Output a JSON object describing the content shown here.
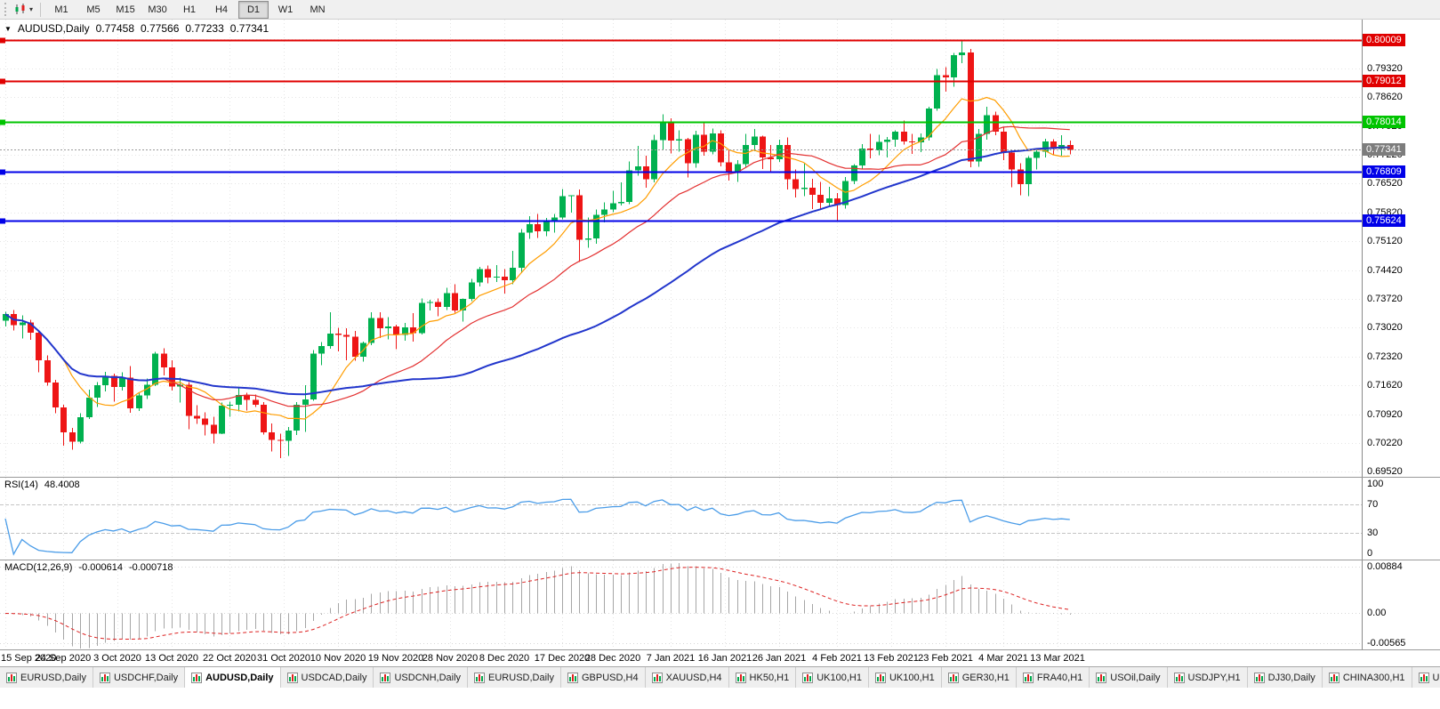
{
  "colors": {
    "bull": "#00b14f",
    "bear": "#ee1515",
    "grid": "#e5e5e5",
    "ma_fast": "#ff9d00",
    "ma_mid": "#e33030",
    "ma_slow": "#2236cc",
    "rsi_line": "#4a9ce8",
    "macd_hist": "#a6a6a6",
    "macd_signal": "#dd2222",
    "hline_red": "#e00000",
    "hline_green": "#00c400",
    "hline_blue": "#0000e8",
    "current_tag": "#7d7d7d"
  },
  "toolbar": {
    "timeframes": [
      "M1",
      "M5",
      "M15",
      "M30",
      "H1",
      "H4",
      "D1",
      "W1",
      "MN"
    ],
    "active": "D1",
    "dropdown_caret": "▾"
  },
  "header": {
    "collapse_icon": "▼",
    "symbol": "AUDUSD,Daily",
    "open": "0.77458",
    "high": "0.77566",
    "low": "0.77233",
    "close": "0.77341"
  },
  "chart_data": {
    "type": "candlestick",
    "title": "AUDUSD Daily",
    "symbol": "AUDUSD",
    "timeframe": "Daily",
    "y_axis": {
      "min": 0.694,
      "max": 0.805,
      "grid": [
        "0.80020",
        "0.79320",
        "0.78620",
        "0.77920",
        "0.77220",
        "0.76520",
        "0.75820",
        "0.75120",
        "0.74420",
        "0.73720",
        "0.73020",
        "0.72320",
        "0.71620",
        "0.70920",
        "0.70220",
        "0.69520"
      ]
    },
    "x_labels": [
      [
        "15 Sep 2020",
        0
      ],
      [
        "24 Sep 2020",
        7
      ],
      [
        "3 Oct 2020",
        13.5
      ],
      [
        "13 Oct 2020",
        20
      ],
      [
        "22 Oct 2020",
        27
      ],
      [
        "31 Oct 2020",
        33.5
      ],
      [
        "10 Nov 2020",
        40
      ],
      [
        "19 Nov 2020",
        47
      ],
      [
        "28 Nov 2020",
        53.5
      ],
      [
        "8 Dec 2020",
        60
      ],
      [
        "17 Dec 2020",
        67
      ],
      [
        "28 Dec 2020",
        73
      ],
      [
        "7 Jan 2021",
        80
      ],
      [
        "16 Jan 2021",
        86.5
      ],
      [
        "26 Jan 2021",
        93
      ],
      [
        "4 Feb 2021",
        100
      ],
      [
        "13 Feb 2021",
        106.5
      ],
      [
        "23 Feb 2021",
        113
      ],
      [
        "4 Mar 2021",
        120
      ],
      [
        "13 Mar 2021",
        126.5
      ]
    ],
    "ma": [
      {
        "period": 8,
        "color_key": "ma_fast",
        "width": 1.2
      },
      {
        "period": 20,
        "color_key": "ma_mid",
        "width": 1.2
      },
      {
        "period": 50,
        "color_key": "ma_slow",
        "width": 2
      }
    ],
    "hlines": [
      {
        "label": "0.80009",
        "price": 0.80009,
        "color": "#e00000"
      },
      {
        "label": "0.79012",
        "price": 0.79012,
        "color": "#e00000"
      },
      {
        "label": "0.78014",
        "price": 0.78014,
        "color": "#00c400"
      },
      {
        "label": "0.76809",
        "price": 0.76809,
        "color": "#0000e8"
      },
      {
        "label": "0.75624",
        "price": 0.75624,
        "color": "#0000e8"
      }
    ],
    "current_price": {
      "label": "0.77341",
      "price": 0.77341,
      "color": "#7d7d7d"
    },
    "candles": [
      [
        0.7319,
        0.7341,
        0.7305,
        0.7335
      ],
      [
        0.7335,
        0.7345,
        0.7295,
        0.7308
      ],
      [
        0.7308,
        0.7332,
        0.7276,
        0.7315
      ],
      [
        0.7315,
        0.7321,
        0.7273,
        0.729
      ],
      [
        0.729,
        0.7294,
        0.7194,
        0.7223
      ],
      [
        0.7223,
        0.7235,
        0.7161,
        0.7169
      ],
      [
        0.7169,
        0.7175,
        0.7094,
        0.7108
      ],
      [
        0.7108,
        0.7115,
        0.7016,
        0.7048
      ],
      [
        0.7048,
        0.7059,
        0.7006,
        0.7025
      ],
      [
        0.7025,
        0.7094,
        0.7021,
        0.7085
      ],
      [
        0.7085,
        0.7152,
        0.708,
        0.7132
      ],
      [
        0.7132,
        0.717,
        0.711,
        0.7162
      ],
      [
        0.7162,
        0.7195,
        0.7147,
        0.7185
      ],
      [
        0.7185,
        0.7191,
        0.7123,
        0.7158
      ],
      [
        0.7158,
        0.7194,
        0.715,
        0.7181
      ],
      [
        0.7181,
        0.7209,
        0.7096,
        0.7106
      ],
      [
        0.7106,
        0.7145,
        0.71,
        0.7138
      ],
      [
        0.7138,
        0.7179,
        0.7129,
        0.7164
      ],
      [
        0.7164,
        0.7243,
        0.716,
        0.7239
      ],
      [
        0.7239,
        0.7252,
        0.7186,
        0.7206
      ],
      [
        0.7206,
        0.7223,
        0.715,
        0.7159
      ],
      [
        0.7159,
        0.7181,
        0.712,
        0.7164
      ],
      [
        0.7164,
        0.717,
        0.7055,
        0.7088
      ],
      [
        0.7088,
        0.7114,
        0.7068,
        0.7081
      ],
      [
        0.7081,
        0.7097,
        0.704,
        0.7066
      ],
      [
        0.7066,
        0.7086,
        0.7021,
        0.7045
      ],
      [
        0.7045,
        0.712,
        0.7044,
        0.7113
      ],
      [
        0.7113,
        0.7123,
        0.7086,
        0.7115
      ],
      [
        0.7115,
        0.7158,
        0.7099,
        0.7139
      ],
      [
        0.7139,
        0.7144,
        0.7101,
        0.7127
      ],
      [
        0.7127,
        0.714,
        0.7109,
        0.7115
      ],
      [
        0.7115,
        0.7121,
        0.7043,
        0.7048
      ],
      [
        0.7048,
        0.707,
        0.7002,
        0.703
      ],
      [
        0.703,
        0.7045,
        0.6985,
        0.7028
      ],
      [
        0.7028,
        0.7061,
        0.6991,
        0.7052
      ],
      [
        0.7052,
        0.7121,
        0.7041,
        0.7115
      ],
      [
        0.7115,
        0.7162,
        0.7049,
        0.7128
      ],
      [
        0.7128,
        0.7248,
        0.7125,
        0.7239
      ],
      [
        0.7239,
        0.7267,
        0.7211,
        0.7257
      ],
      [
        0.7257,
        0.734,
        0.7251,
        0.7288
      ],
      [
        0.7288,
        0.7302,
        0.7244,
        0.7284
      ],
      [
        0.7284,
        0.7301,
        0.7223,
        0.728
      ],
      [
        0.728,
        0.7294,
        0.7222,
        0.7231
      ],
      [
        0.7231,
        0.7268,
        0.722,
        0.7265
      ],
      [
        0.7265,
        0.734,
        0.726,
        0.7326
      ],
      [
        0.7326,
        0.7339,
        0.7277,
        0.7301
      ],
      [
        0.7301,
        0.7328,
        0.7274,
        0.7305
      ],
      [
        0.7305,
        0.7309,
        0.725,
        0.7284
      ],
      [
        0.7284,
        0.7314,
        0.727,
        0.7303
      ],
      [
        0.7303,
        0.7337,
        0.7268,
        0.7289
      ],
      [
        0.7289,
        0.7373,
        0.7285,
        0.7362
      ],
      [
        0.7362,
        0.737,
        0.7344,
        0.7364
      ],
      [
        0.7364,
        0.7373,
        0.733,
        0.7353
      ],
      [
        0.7353,
        0.7399,
        0.7345,
        0.7386
      ],
      [
        0.7386,
        0.7408,
        0.7338,
        0.7344
      ],
      [
        0.7344,
        0.7373,
        0.7317,
        0.7372
      ],
      [
        0.7372,
        0.742,
        0.7366,
        0.7412
      ],
      [
        0.7412,
        0.745,
        0.7402,
        0.7444
      ],
      [
        0.7444,
        0.7453,
        0.741,
        0.7424
      ],
      [
        0.7424,
        0.7454,
        0.7413,
        0.7426
      ],
      [
        0.7426,
        0.7444,
        0.7385,
        0.7417
      ],
      [
        0.7417,
        0.7489,
        0.7408,
        0.7447
      ],
      [
        0.7447,
        0.7541,
        0.7434,
        0.7533
      ],
      [
        0.7533,
        0.7573,
        0.7518,
        0.7553
      ],
      [
        0.7553,
        0.7578,
        0.752,
        0.7536
      ],
      [
        0.7536,
        0.7568,
        0.7524,
        0.7562
      ],
      [
        0.7562,
        0.7578,
        0.7533,
        0.757
      ],
      [
        0.757,
        0.7639,
        0.7565,
        0.7621
      ],
      [
        0.7621,
        0.7624,
        0.7581,
        0.7623
      ],
      [
        0.7623,
        0.7638,
        0.7462,
        0.7515
      ],
      [
        0.7515,
        0.7569,
        0.7496,
        0.7519
      ],
      [
        0.7519,
        0.7589,
        0.7506,
        0.7576
      ],
      [
        0.7576,
        0.7606,
        0.7558,
        0.7589
      ],
      [
        0.7589,
        0.7634,
        0.7582,
        0.7604
      ],
      [
        0.7604,
        0.7655,
        0.7599,
        0.7607
      ],
      [
        0.7607,
        0.7706,
        0.7602,
        0.7684
      ],
      [
        0.7684,
        0.7743,
        0.7671,
        0.7694
      ],
      [
        0.7694,
        0.772,
        0.7642,
        0.7662
      ],
      [
        0.7662,
        0.777,
        0.7655,
        0.7757
      ],
      [
        0.7757,
        0.782,
        0.7733,
        0.7801
      ],
      [
        0.7801,
        0.781,
        0.7725,
        0.7756
      ],
      [
        0.7756,
        0.7781,
        0.7729,
        0.776
      ],
      [
        0.776,
        0.7763,
        0.7667,
        0.7701
      ],
      [
        0.7701,
        0.778,
        0.769,
        0.777
      ],
      [
        0.777,
        0.7798,
        0.772,
        0.7729
      ],
      [
        0.7729,
        0.7785,
        0.7723,
        0.7774
      ],
      [
        0.7774,
        0.7781,
        0.7694,
        0.7703
      ],
      [
        0.7703,
        0.7734,
        0.7659,
        0.7679
      ],
      [
        0.7679,
        0.7709,
        0.7656,
        0.7699
      ],
      [
        0.7699,
        0.7772,
        0.7693,
        0.7745
      ],
      [
        0.7745,
        0.7784,
        0.773,
        0.7766
      ],
      [
        0.7766,
        0.7768,
        0.7687,
        0.7715
      ],
      [
        0.7715,
        0.7746,
        0.7681,
        0.7711
      ],
      [
        0.7711,
        0.7758,
        0.7705,
        0.7745
      ],
      [
        0.7745,
        0.7764,
        0.7638,
        0.7662
      ],
      [
        0.7662,
        0.7686,
        0.7618,
        0.7639
      ],
      [
        0.7639,
        0.7701,
        0.7621,
        0.7642
      ],
      [
        0.7642,
        0.7663,
        0.759,
        0.7625
      ],
      [
        0.7625,
        0.7656,
        0.7589,
        0.7605
      ],
      [
        0.7605,
        0.7644,
        0.7597,
        0.7616
      ],
      [
        0.7616,
        0.7629,
        0.7562,
        0.76
      ],
      [
        0.76,
        0.7668,
        0.7591,
        0.7658
      ],
      [
        0.7658,
        0.7699,
        0.765,
        0.7696
      ],
      [
        0.7696,
        0.7748,
        0.7687,
        0.7737
      ],
      [
        0.7737,
        0.7773,
        0.7713,
        0.7733
      ],
      [
        0.7733,
        0.777,
        0.7721,
        0.7753
      ],
      [
        0.7753,
        0.7765,
        0.7715,
        0.7758
      ],
      [
        0.7758,
        0.7781,
        0.7741,
        0.7778
      ],
      [
        0.7778,
        0.7805,
        0.7747,
        0.7754
      ],
      [
        0.7754,
        0.7773,
        0.7724,
        0.7752
      ],
      [
        0.7752,
        0.7774,
        0.7728,
        0.7764
      ],
      [
        0.7764,
        0.7838,
        0.7756,
        0.7834
      ],
      [
        0.7834,
        0.793,
        0.7829,
        0.7915
      ],
      [
        0.7915,
        0.7934,
        0.7875,
        0.791
      ],
      [
        0.791,
        0.7969,
        0.7887,
        0.7964
      ],
      [
        0.7964,
        0.80009,
        0.7944,
        0.797
      ],
      [
        0.797,
        0.7979,
        0.7692,
        0.7706
      ],
      [
        0.7706,
        0.7784,
        0.7693,
        0.7772
      ],
      [
        0.7772,
        0.7838,
        0.7758,
        0.7818
      ],
      [
        0.7818,
        0.7827,
        0.7769,
        0.7778
      ],
      [
        0.7778,
        0.7789,
        0.7709,
        0.7727
      ],
      [
        0.7727,
        0.7734,
        0.7643,
        0.7686
      ],
      [
        0.7686,
        0.7701,
        0.7623,
        0.765
      ],
      [
        0.765,
        0.7718,
        0.7621,
        0.7714
      ],
      [
        0.7714,
        0.7737,
        0.7686,
        0.7729
      ],
      [
        0.7729,
        0.7761,
        0.7715,
        0.7754
      ],
      [
        0.7754,
        0.776,
        0.7723,
        0.7736
      ],
      [
        0.7736,
        0.7769,
        0.772,
        0.77458
      ],
      [
        0.77458,
        0.77566,
        0.77233,
        0.77341
      ]
    ]
  },
  "rsi": {
    "title": "RSI(14)",
    "value": "48.4008",
    "period": 14,
    "levels": [
      "100",
      "70",
      "30",
      "0"
    ],
    "dash_levels": [
      70,
      30
    ],
    "range": [
      0,
      100
    ]
  },
  "macd": {
    "title": "MACD(12,26,9)",
    "value_main": "-0.000614",
    "value_signal": "-0.000718",
    "params": [
      12,
      26,
      9
    ],
    "axis": [
      "0.00884",
      "0.00",
      "-0.00565"
    ],
    "range": [
      -0.00565,
      0.00884
    ]
  },
  "tabs": {
    "items": [
      {
        "label": "EURUSD,Daily",
        "active": false
      },
      {
        "label": "USDCHF,Daily",
        "active": false
      },
      {
        "label": "AUDUSD,Daily",
        "active": true
      },
      {
        "label": "USDCAD,Daily",
        "active": false
      },
      {
        "label": "USDCNH,Daily",
        "active": false
      },
      {
        "label": "EURUSD,Daily",
        "active": false
      },
      {
        "label": "GBPUSD,H4",
        "active": false
      },
      {
        "label": "XAUUSD,H4",
        "active": false
      },
      {
        "label": "HK50,H1",
        "active": false
      },
      {
        "label": "UK100,H1",
        "active": false
      },
      {
        "label": "UK100,H1",
        "active": false
      },
      {
        "label": "GER30,H1",
        "active": false
      },
      {
        "label": "FRA40,H1",
        "active": false
      },
      {
        "label": "USOil,Daily",
        "active": false
      },
      {
        "label": "USDJPY,H1",
        "active": false
      },
      {
        "label": "DJ30,Daily",
        "active": false
      },
      {
        "label": "CHINA300,H1",
        "active": false
      },
      {
        "label": "USOil,",
        "active": false
      }
    ]
  }
}
